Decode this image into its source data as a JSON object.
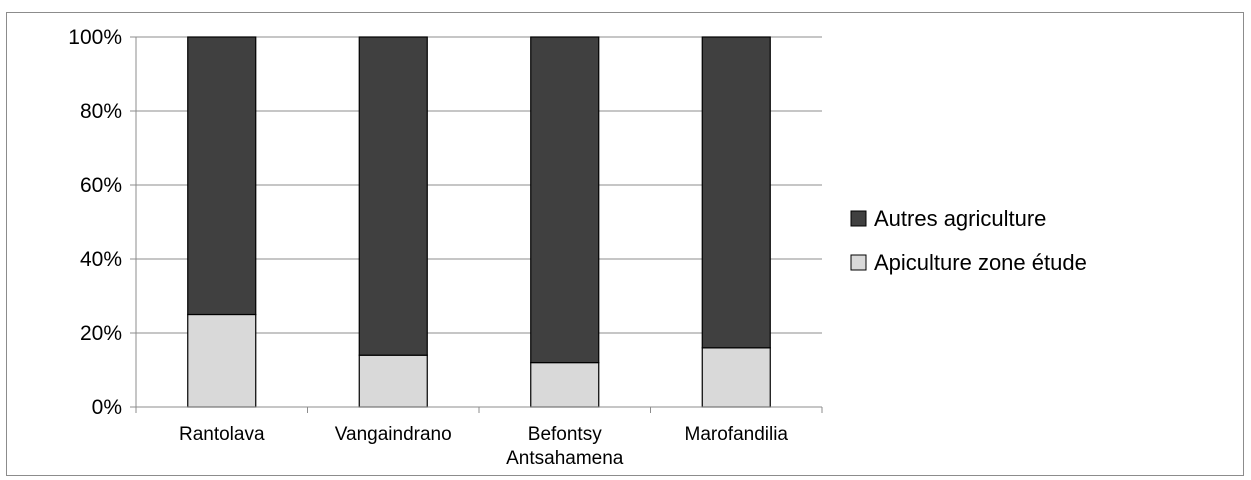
{
  "chart_data": {
    "type": "bar",
    "stacked": true,
    "percent": true,
    "categories": [
      "Rantolava",
      "Vangaindrano",
      "Befontsy Antsahamena",
      "Marofandilia"
    ],
    "category_label_lines": [
      [
        "Rantolava"
      ],
      [
        "Vangaindrano"
      ],
      [
        "Befontsy",
        "Antsahamena"
      ],
      [
        "Marofandilia"
      ]
    ],
    "series": [
      {
        "name": "Apiculture zone étude",
        "values": [
          25,
          14,
          12,
          16
        ]
      },
      {
        "name": "Autres agriculture",
        "values": [
          75,
          86,
          88,
          84
        ]
      }
    ],
    "ylim": [
      0,
      100
    ],
    "yticks": [
      "0%",
      "20%",
      "40%",
      "60%",
      "80%",
      "100%"
    ],
    "grid": true,
    "legend": "right",
    "colors": {
      "Apiculture zone étude": "#d9d9d9",
      "Autres agriculture": "#404040"
    },
    "title": "",
    "xlabel": "",
    "ylabel": ""
  }
}
